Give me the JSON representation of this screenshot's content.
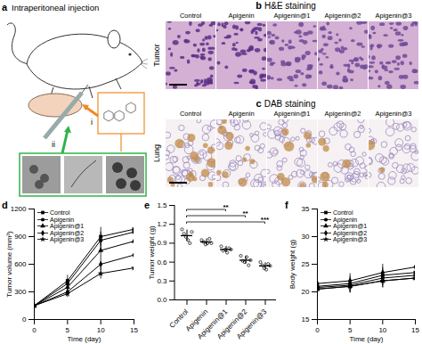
{
  "panels": [
    {
      "panel": "a",
      "title": "Intraperitoneal injection",
      "labels": [
        "i",
        "ii"
      ]
    },
    {
      "panel": "b",
      "title": "H&E staining",
      "row_label": "Tumor",
      "columns": [
        "Control",
        "Apigenin",
        "Apigenin@1",
        "Apigenin@2",
        "Apigenin@3"
      ]
    },
    {
      "panel": "c",
      "title": "DAB staining",
      "row_label": "Lung",
      "columns": [
        "Control",
        "Apigenin",
        "Apigenin@1",
        "Apigenin@2",
        "Apigenin@3"
      ]
    }
  ],
  "chart_data": [
    {
      "panel": "d",
      "type": "line",
      "x_label": "Time (day)",
      "y_label": "Tumor volume (mm³)",
      "x": [
        0,
        5,
        10,
        15
      ],
      "xlim": [
        0,
        15
      ],
      "xticks": [
        0,
        5,
        10,
        15
      ],
      "ylim": [
        0,
        1200
      ],
      "yticks": [
        0,
        300,
        600,
        900,
        1200
      ],
      "legend": "top-left",
      "series": [
        {
          "name": "Control",
          "color": "#000000",
          "marker": "square",
          "line_style": "solid",
          "values": [
            150,
            420,
            900,
            980
          ],
          "errors": [
            20,
            60,
            100,
            90
          ]
        },
        {
          "name": "Apigenin",
          "color": "#000000",
          "marker": "circle",
          "line_style": "solid",
          "values": [
            150,
            390,
            860,
            950
          ],
          "errors": [
            20,
            50,
            90,
            90
          ]
        },
        {
          "name": "Apigenin@1",
          "color": "#000000",
          "marker": "triangle",
          "line_style": "solid",
          "values": [
            150,
            350,
            750,
            850
          ],
          "errors": [
            20,
            50,
            80,
            80
          ]
        },
        {
          "name": "Apigenin@2",
          "color": "#000000",
          "marker": "diamond",
          "line_style": "solid",
          "values": [
            150,
            300,
            600,
            700
          ],
          "errors": [
            20,
            40,
            70,
            70
          ]
        },
        {
          "name": "Apigenin@3",
          "color": "#000000",
          "marker": "star",
          "line_style": "solid",
          "values": [
            150,
            280,
            500,
            560
          ],
          "errors": [
            20,
            40,
            60,
            60
          ]
        }
      ]
    },
    {
      "panel": "e",
      "type": "dot",
      "y_label": "Tumor weight (g)",
      "categories": [
        "Control",
        "Apigenin",
        "Apigenin@1",
        "Apigenin@2",
        "Apigenin@3"
      ],
      "values": [
        1.02,
        0.92,
        0.8,
        0.63,
        0.54
      ],
      "errors": [
        0.09,
        0.05,
        0.05,
        0.06,
        0.05
      ],
      "points": [
        [
          1.12,
          1.05,
          1.0,
          0.95,
          0.9,
          1.08
        ],
        [
          0.95,
          0.92,
          0.88,
          0.9,
          0.97,
          0.9
        ],
        [
          0.85,
          0.78,
          0.8,
          0.75,
          0.82,
          0.8
        ],
        [
          0.7,
          0.62,
          0.6,
          0.68,
          0.55,
          0.63
        ],
        [
          0.6,
          0.55,
          0.5,
          0.48,
          0.57,
          0.54
        ]
      ],
      "ylim": [
        0,
        1.5
      ],
      "yticks": [
        {
          "value": 0,
          "label": "0.0"
        },
        0.3,
        0.6,
        0.9,
        1.2,
        1.5
      ],
      "marker": "circle",
      "color": "#000000",
      "annotations": [
        {
          "from": "Control",
          "to": "Apigenin@1",
          "label": "**"
        },
        {
          "from": "Control",
          "to": "Apigenin@2",
          "label": "**"
        },
        {
          "from": "Control",
          "to": "Apigenin@3",
          "label": "***"
        }
      ]
    },
    {
      "panel": "f",
      "type": "line",
      "x_label": "Time (day)",
      "y_label": "Body weight (g)",
      "x": [
        0,
        5,
        10,
        15
      ],
      "xlim": [
        0,
        15
      ],
      "xticks": [
        0,
        5,
        10,
        15
      ],
      "ylim": [
        15,
        35
      ],
      "yticks": [
        15,
        20,
        25,
        30,
        35
      ],
      "legend": "top-left",
      "series": [
        {
          "name": "Control",
          "color": "#000000",
          "marker": "square",
          "line_style": "solid",
          "values": [
            21,
            21.5,
            23,
            23.5
          ],
          "errors": [
            1.2,
            1.3,
            1.4,
            1.5
          ]
        },
        {
          "name": "Apigenin",
          "color": "#000000",
          "marker": "circle",
          "line_style": "solid",
          "values": [
            20.8,
            21.2,
            22.5,
            23
          ],
          "errors": [
            1.2,
            1.2,
            1.3,
            1.4
          ]
        },
        {
          "name": "Apigenin@1",
          "color": "#000000",
          "marker": "triangle",
          "line_style": "solid",
          "values": [
            20.5,
            21,
            22,
            22.5
          ],
          "errors": [
            1.1,
            1.2,
            1.3,
            1.3
          ]
        },
        {
          "name": "Apigenin@2",
          "color": "#000000",
          "marker": "diamond",
          "line_style": "solid",
          "values": [
            21.5,
            22,
            23.5,
            24.5
          ],
          "errors": [
            1.2,
            1.3,
            1.5,
            1.6
          ]
        },
        {
          "name": "Apigenin@3",
          "color": "#000000",
          "marker": "star",
          "line_style": "solid",
          "values": [
            20.5,
            21,
            22,
            22.5
          ],
          "errors": [
            1.1,
            1.2,
            1.2,
            1.3
          ]
        }
      ]
    }
  ]
}
